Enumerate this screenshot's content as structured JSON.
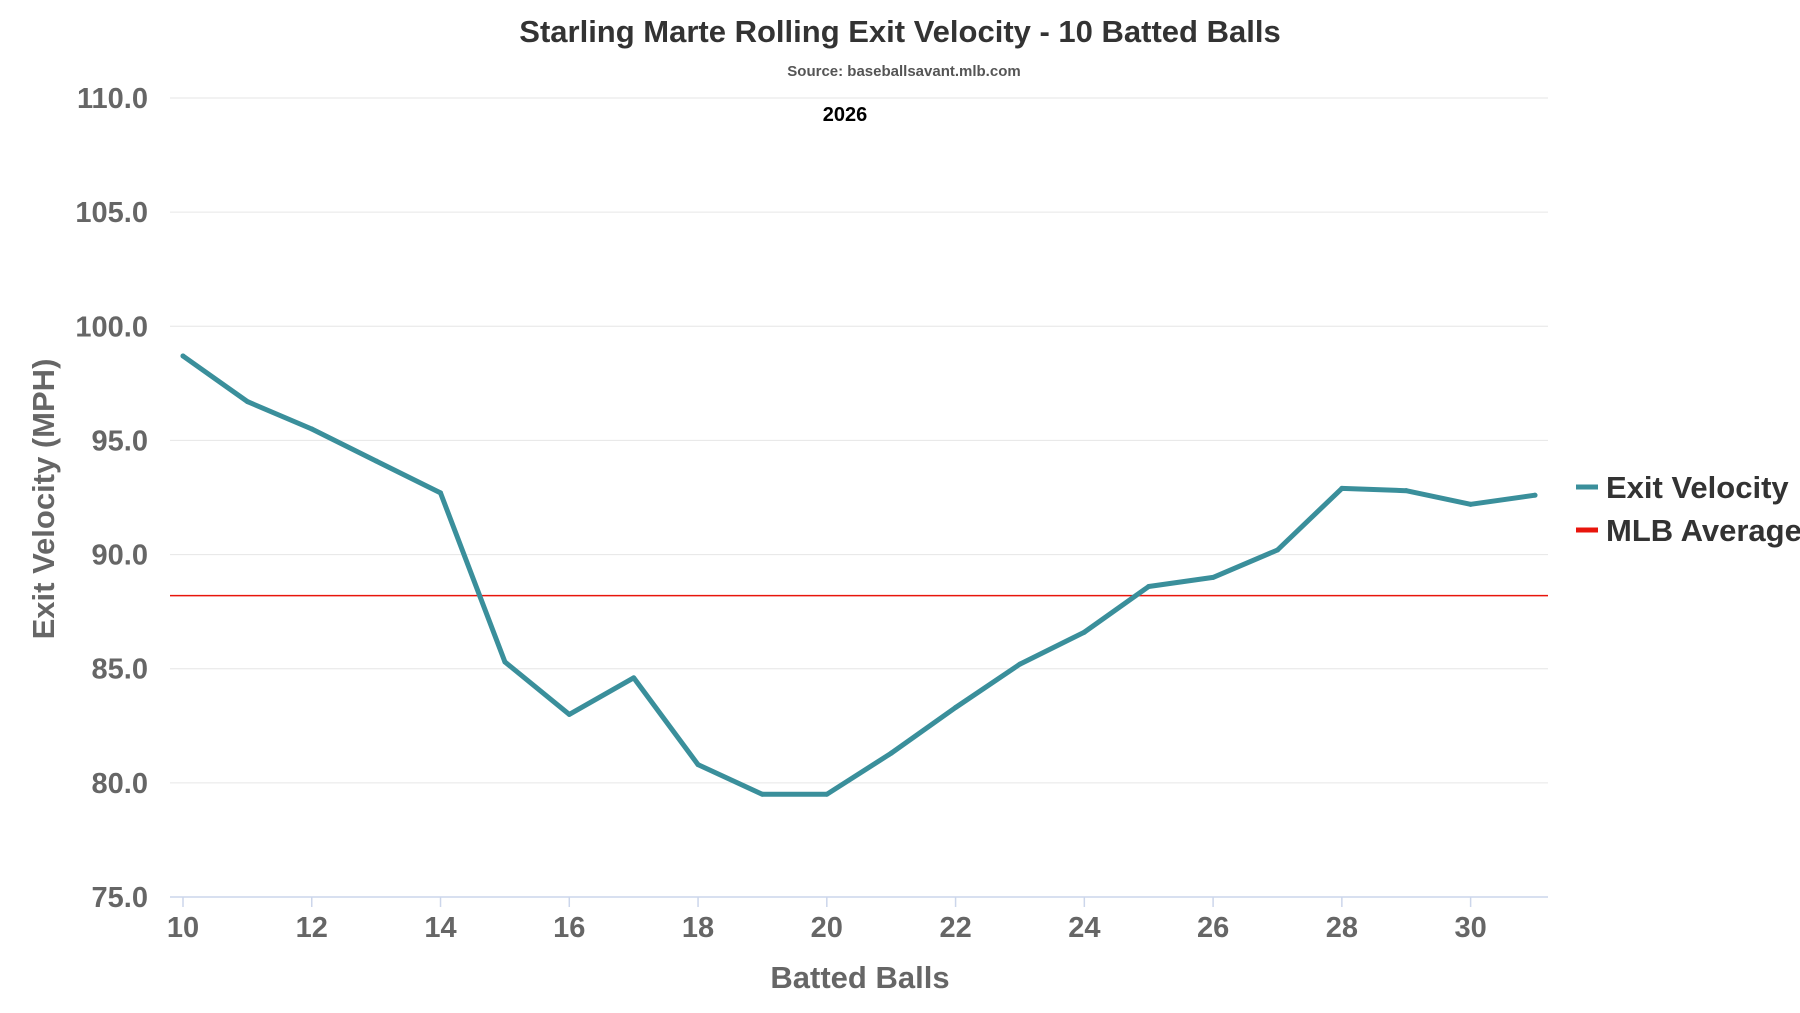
{
  "chart_data": {
    "type": "line",
    "title": "Starling Marte Rolling Exit Velocity - 10 Batted Balls",
    "subtitle": "Source: baseballsavant.mlb.com",
    "annotation": "2026",
    "xlabel": "Batted Balls",
    "ylabel": "Exit Velocity (MPH)",
    "xlim": [
      10,
      31
    ],
    "ylim": [
      75,
      110
    ],
    "x_ticks": [
      10,
      12,
      14,
      16,
      18,
      20,
      22,
      24,
      26,
      28,
      30
    ],
    "y_ticks": [
      "75.0",
      "80.0",
      "85.0",
      "90.0",
      "95.0",
      "100.0",
      "105.0",
      "110.0"
    ],
    "grid": true,
    "legend_position": "right",
    "series": [
      {
        "name": "Exit Velocity",
        "color": "#3a8f9b",
        "x": [
          10,
          11,
          12,
          13,
          14,
          15,
          16,
          17,
          18,
          19,
          20,
          21,
          22,
          23,
          24,
          25,
          26,
          27,
          28,
          29,
          30,
          31
        ],
        "y": [
          98.7,
          96.7,
          95.5,
          94.1,
          92.7,
          85.3,
          83.0,
          84.6,
          80.8,
          79.5,
          79.5,
          81.3,
          83.3,
          85.2,
          86.6,
          88.6,
          89.0,
          90.2,
          92.9,
          92.8,
          92.2,
          92.6
        ]
      },
      {
        "name": "MLB Average",
        "color": "#e8150c",
        "y": 88.2
      }
    ]
  }
}
